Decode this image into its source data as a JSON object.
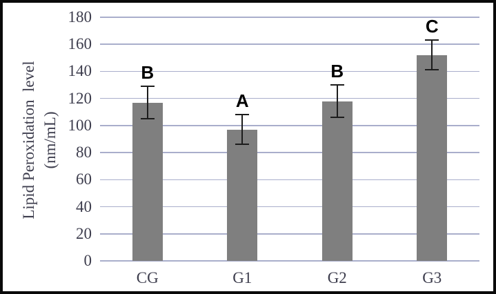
{
  "chart_data": {
    "type": "bar",
    "title": "",
    "categories": [
      "CG",
      "G1",
      "G2",
      "G3"
    ],
    "values": [
      117,
      97,
      118,
      152
    ],
    "errors": [
      12,
      11,
      12,
      11
    ],
    "sig_letters": [
      "B",
      "A",
      "B",
      "C"
    ],
    "ylabel_line1": "Lipid Peroxidation  level",
    "ylabel_line2": "(nm/mL)",
    "xlabel": "",
    "ylim": [
      0,
      180
    ],
    "ytick_step": 20,
    "yticks": [
      0,
      20,
      40,
      60,
      80,
      100,
      120,
      140,
      160,
      180
    ],
    "grid": true,
    "legend": "none",
    "colors": {
      "bar_fill": "#7f7f7f",
      "gridline": "#a9aecb",
      "axis_line": "#a9aecb",
      "tick_label": "#3d3d4d",
      "sig_letter": "#000000",
      "error_bar": "#1c1c1c",
      "background": "#ffffff",
      "frame_border": "#0a0a0a"
    }
  }
}
